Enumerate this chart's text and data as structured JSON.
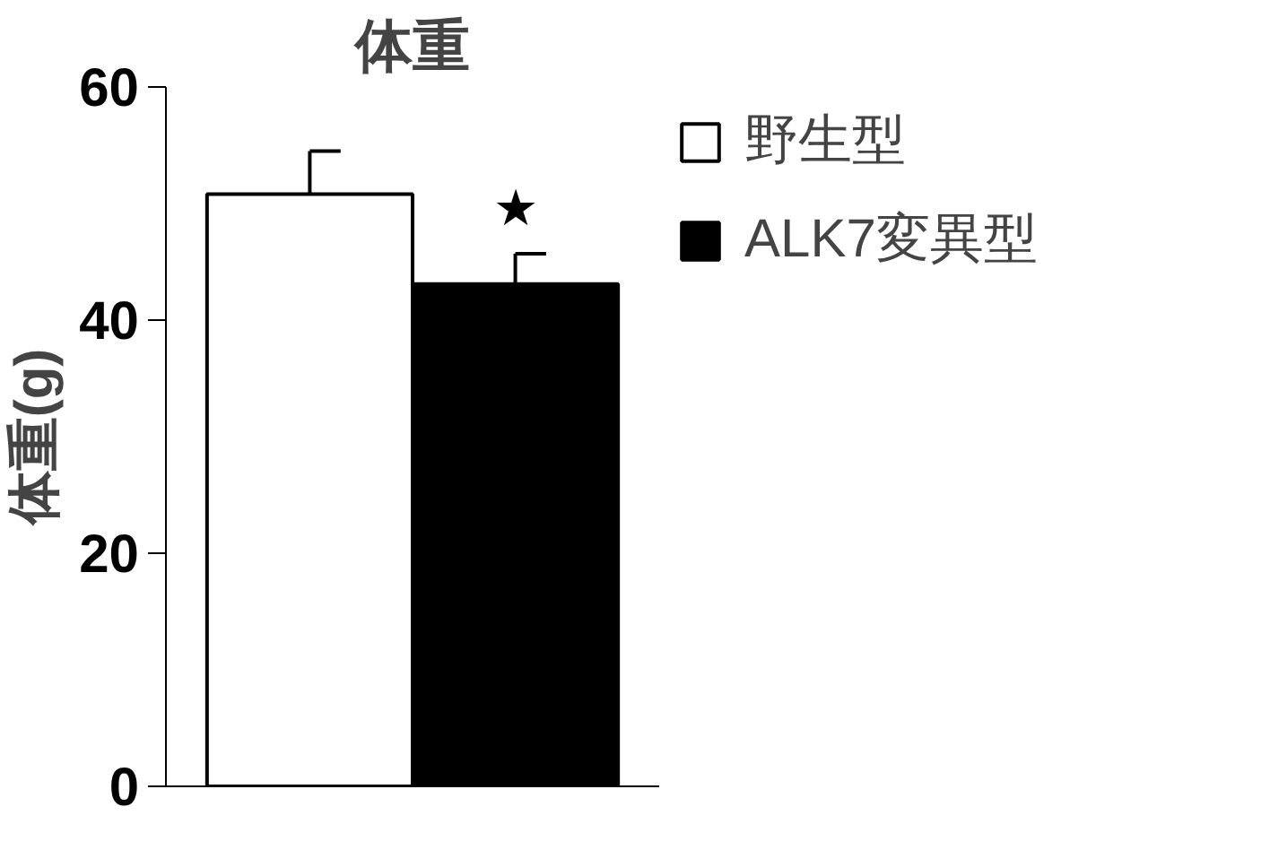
{
  "chart_data": {
    "type": "bar",
    "title": "体重",
    "ylabel": "体重(g)",
    "categories": [
      null
    ],
    "series": [
      {
        "name": "野生型",
        "color": "#ffffff",
        "values": [
          50.8
        ],
        "errors": [
          [
            50.8,
            54.5
          ]
        ]
      },
      {
        "name": "ALK7変異型",
        "color": "#000000",
        "values": [
          43.1
        ],
        "errors": [
          [
            43.1,
            45.7
          ]
        ]
      }
    ],
    "annotations": [
      "★"
    ],
    "ylim": [
      0,
      60
    ],
    "yticks": [
      0,
      20,
      40,
      60
    ],
    "legend": "top right"
  }
}
